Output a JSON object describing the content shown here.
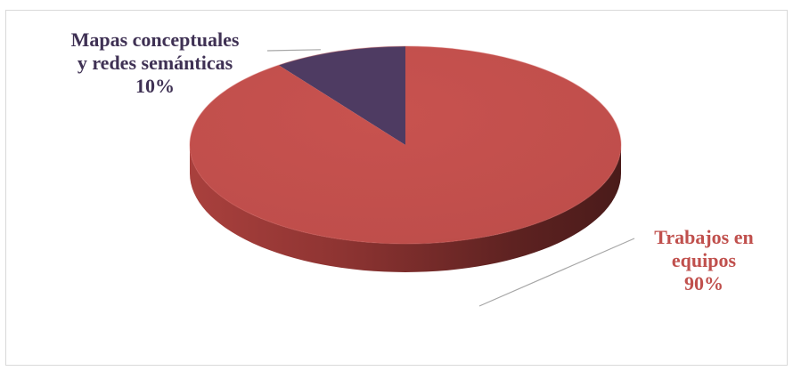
{
  "chart_data": {
    "type": "pie",
    "style": "3d",
    "title": "",
    "slices": [
      {
        "label_lines": [
          "Mapas conceptuales",
          "y redes semánticas"
        ],
        "percent_label": "10%",
        "value": 10,
        "color": "#4e3b62",
        "label_color": "#3f3154"
      },
      {
        "label_lines": [
          "Trabajos en",
          "equipos"
        ],
        "percent_label": "90%",
        "value": 90,
        "color": "#c0504d",
        "label_color": "#c0504d"
      }
    ],
    "legend": "none",
    "labels": "outside with leader lines"
  }
}
